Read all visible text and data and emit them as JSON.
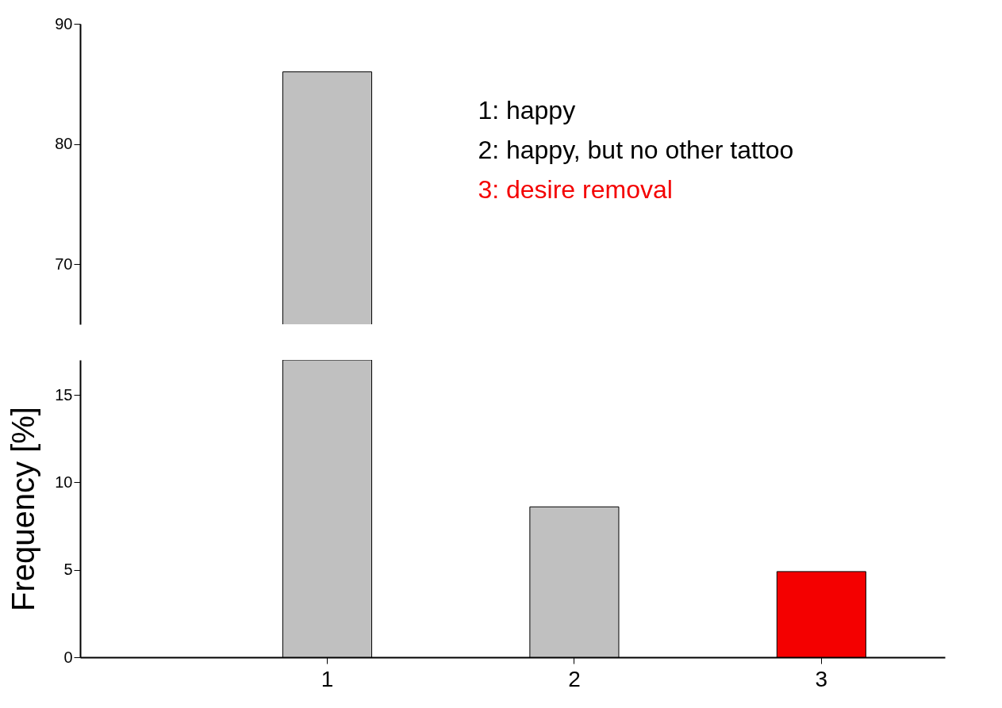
{
  "chart_data": [
    {
      "type": "bar",
      "categories": [
        null,
        null,
        null
      ],
      "values": [
        86,
        null,
        null
      ],
      "colors": [
        "#c0c0c0",
        "#c0c0c0",
        "#f40000"
      ],
      "ylim": [
        65,
        90
      ],
      "yticks": [
        70,
        80,
        90
      ],
      "tick_labels": "y",
      "annotations": [
        "1: happy",
        "2: happy, but no other tattoo",
        "3: desire removal"
      ]
    },
    {
      "type": "bar",
      "categories": [
        "1",
        "2",
        "3"
      ],
      "values": [
        17,
        8.6,
        4.9
      ],
      "colors": [
        "#c0c0c0",
        "#c0c0c0",
        "#f40000"
      ],
      "ylim": [
        0,
        17
      ],
      "yticks": [
        0,
        5,
        10,
        15
      ],
      "ylabel": "Frequency [%]"
    }
  ]
}
